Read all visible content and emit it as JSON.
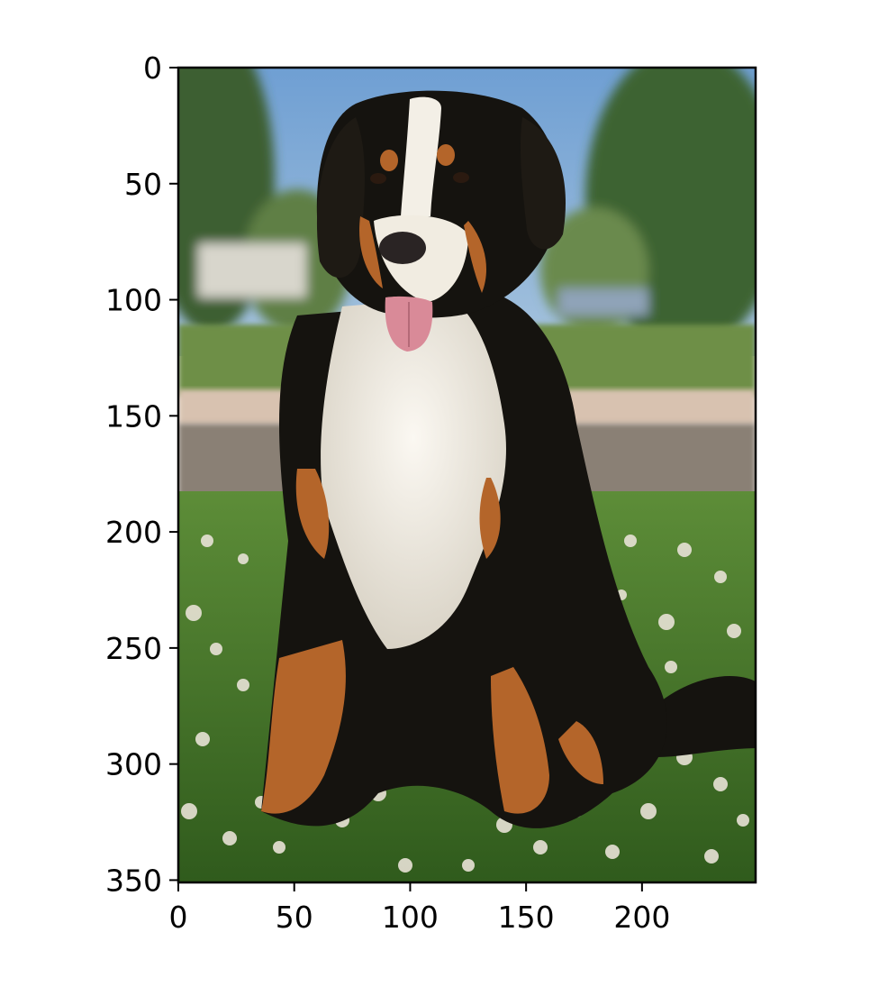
{
  "image": {
    "subject": "dog-photo",
    "x_range": [
      0,
      249
    ],
    "y_range": [
      0,
      351
    ]
  },
  "axes": {
    "x_ticks": [
      {
        "value": 0,
        "label": "0"
      },
      {
        "value": 50,
        "label": "50"
      },
      {
        "value": 100,
        "label": "100"
      },
      {
        "value": 150,
        "label": "150"
      },
      {
        "value": 200,
        "label": "200"
      }
    ],
    "y_ticks": [
      {
        "value": 0,
        "label": "0"
      },
      {
        "value": 50,
        "label": "50"
      },
      {
        "value": 100,
        "label": "100"
      },
      {
        "value": 150,
        "label": "150"
      },
      {
        "value": 200,
        "label": "200"
      },
      {
        "value": 250,
        "label": "250"
      },
      {
        "value": 300,
        "label": "300"
      },
      {
        "value": 350,
        "label": "350"
      }
    ]
  },
  "colors": {
    "sky": "#7aa3cf",
    "trees": "#4a6a3a",
    "grass": "#4d7f2e",
    "dog_black": "#15130f",
    "dog_white": "#f3efe6",
    "dog_rust": "#b4652a",
    "tongue": "#d98a98"
  }
}
